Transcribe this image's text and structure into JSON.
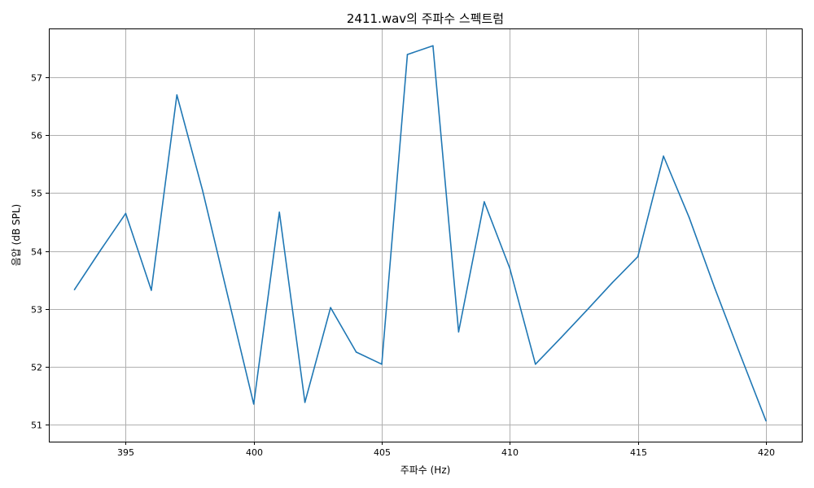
{
  "chart_data": {
    "type": "line",
    "title": "2411.wav의 주파수 스펙트럼",
    "xlabel": "주파수 (Hz)",
    "ylabel": "음압 (dB SPL)",
    "xlim": [
      392,
      421.4
    ],
    "ylim": [
      50.7,
      57.85
    ],
    "xticks": [
      395,
      400,
      405,
      410,
      415,
      420
    ],
    "yticks": [
      51,
      52,
      53,
      54,
      55,
      56,
      57
    ],
    "grid": true,
    "line_color": "#1f77b4",
    "series": [
      {
        "x": [
          393,
          394,
          395,
          396,
          397,
          398,
          399,
          400,
          401,
          402,
          403,
          404,
          405,
          406,
          407,
          408,
          409,
          410,
          411,
          412,
          413,
          414,
          415,
          416,
          417,
          418,
          419,
          420
        ],
        "values": [
          53.33,
          54.0,
          54.65,
          53.32,
          56.7,
          55.05,
          53.2,
          51.35,
          54.67,
          51.38,
          53.02,
          52.25,
          52.04,
          57.4,
          57.55,
          52.6,
          54.85,
          53.7,
          52.04,
          52.5,
          52.97,
          53.45,
          53.9,
          55.64,
          54.58,
          53.36,
          52.2,
          51.06
        ]
      }
    ]
  }
}
